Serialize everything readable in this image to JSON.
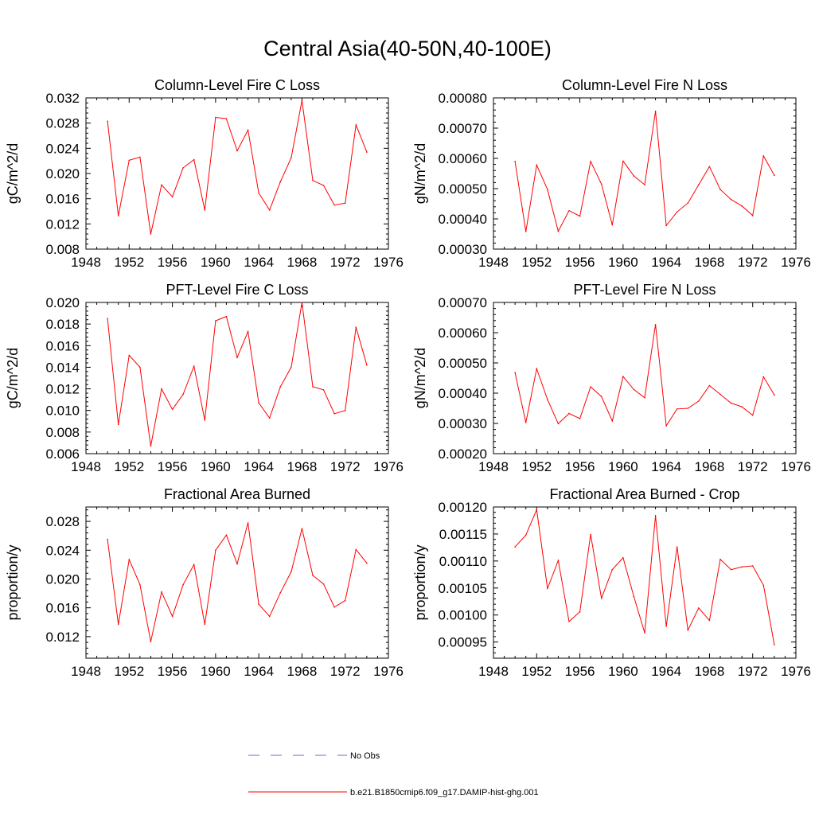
{
  "figure": {
    "title": "Central Asia(40-50N,40-100E)"
  },
  "legend": {
    "items": [
      {
        "label": "No Obs",
        "style": "dashed",
        "color": "#6a6ad0"
      },
      {
        "label": "b.e21.B1850cmip6.f09_g17.DAMIP-hist-ghg.001",
        "style": "solid",
        "color": "#ff0000"
      }
    ]
  },
  "chart_data": [
    {
      "type": "line",
      "title": "Column-Level Fire C Loss",
      "ylabel": "gC/m^2/d",
      "xlim": [
        1948,
        1976
      ],
      "xticks": [
        "1948",
        "1952",
        "1956",
        "1960",
        "1964",
        "1968",
        "1972",
        "1976"
      ],
      "ylim": [
        0.008,
        0.032
      ],
      "yticks": [
        "0.008",
        "0.012",
        "0.016",
        "0.020",
        "0.024",
        "0.028",
        "0.032"
      ],
      "series": [
        {
          "color": "#ff0000",
          "x": [
            1950,
            1951,
            1952,
            1953,
            1954,
            1955,
            1956,
            1957,
            1958,
            1959,
            1960,
            1961,
            1962,
            1963,
            1964,
            1965,
            1966,
            1967,
            1968,
            1969,
            1970,
            1971,
            1972,
            1973,
            1974
          ],
          "y": [
            0.0283,
            0.0133,
            0.0221,
            0.0226,
            0.0104,
            0.0182,
            0.0163,
            0.0209,
            0.0222,
            0.0142,
            0.0289,
            0.0287,
            0.0236,
            0.0269,
            0.0169,
            0.0142,
            0.0187,
            0.0225,
            0.0316,
            0.0189,
            0.0181,
            0.015,
            0.0153,
            0.0277,
            0.0234
          ]
        }
      ]
    },
    {
      "type": "line",
      "title": "Column-Level Fire N Loss",
      "ylabel": "gN/m^2/d",
      "xlim": [
        1948,
        1976
      ],
      "xticks": [
        "1948",
        "1952",
        "1956",
        "1960",
        "1964",
        "1968",
        "1972",
        "1976"
      ],
      "ylim": [
        0.0003,
        0.0008
      ],
      "yticks": [
        "0.00030",
        "0.00040",
        "0.00050",
        "0.00060",
        "0.00070",
        "0.00080"
      ],
      "series": [
        {
          "color": "#ff0000",
          "x": [
            1950,
            1951,
            1952,
            1953,
            1954,
            1955,
            1956,
            1957,
            1958,
            1959,
            1960,
            1961,
            1962,
            1963,
            1964,
            1965,
            1966,
            1967,
            1968,
            1969,
            1970,
            1971,
            1972,
            1973,
            1974
          ],
          "y": [
            0.00059,
            0.000358,
            0.000578,
            0.000497,
            0.000359,
            0.000427,
            0.000409,
            0.00059,
            0.000515,
            0.00038,
            0.000591,
            0.000542,
            0.000513,
            0.000756,
            0.000378,
            0.000423,
            0.000452,
            0.000513,
            0.000573,
            0.000497,
            0.000464,
            0.000443,
            0.000411,
            0.000608,
            0.000544
          ]
        }
      ]
    },
    {
      "type": "line",
      "title": "PFT-Level Fire C Loss",
      "ylabel": "gC/m^2/d",
      "xlim": [
        1948,
        1976
      ],
      "xticks": [
        "1948",
        "1952",
        "1956",
        "1960",
        "1964",
        "1968",
        "1972",
        "1976"
      ],
      "ylim": [
        0.006,
        0.02
      ],
      "yticks": [
        "0.006",
        "0.008",
        "0.010",
        "0.012",
        "0.014",
        "0.016",
        "0.018",
        "0.020"
      ],
      "series": [
        {
          "color": "#ff0000",
          "x": [
            1950,
            1951,
            1952,
            1953,
            1954,
            1955,
            1956,
            1957,
            1958,
            1959,
            1960,
            1961,
            1962,
            1963,
            1964,
            1965,
            1966,
            1967,
            1968,
            1969,
            1970,
            1971,
            1972,
            1973,
            1974
          ],
          "y": [
            0.0185,
            0.0087,
            0.0151,
            0.014,
            0.0067,
            0.012,
            0.0101,
            0.0115,
            0.0141,
            0.0091,
            0.0183,
            0.0187,
            0.0149,
            0.0173,
            0.0107,
            0.0093,
            0.0122,
            0.014,
            0.02,
            0.0122,
            0.0119,
            0.0097,
            0.01,
            0.0177,
            0.0142
          ]
        }
      ]
    },
    {
      "type": "line",
      "title": "PFT-Level Fire N Loss",
      "ylabel": "gN/m^2/d",
      "xlim": [
        1948,
        1976
      ],
      "xticks": [
        "1948",
        "1952",
        "1956",
        "1960",
        "1964",
        "1968",
        "1972",
        "1976"
      ],
      "ylim": [
        0.0002,
        0.0007
      ],
      "yticks": [
        "0.00020",
        "0.00030",
        "0.00040",
        "0.00050",
        "0.00060",
        "0.00070"
      ],
      "series": [
        {
          "color": "#ff0000",
          "x": [
            1950,
            1951,
            1952,
            1953,
            1954,
            1955,
            1956,
            1957,
            1958,
            1959,
            1960,
            1961,
            1962,
            1963,
            1964,
            1965,
            1966,
            1967,
            1968,
            1969,
            1970,
            1971,
            1972,
            1973,
            1974
          ],
          "y": [
            0.000468,
            0.000303,
            0.000481,
            0.000379,
            0.000299,
            0.000333,
            0.000316,
            0.000421,
            0.000389,
            0.000308,
            0.000455,
            0.000412,
            0.000385,
            0.000627,
            0.000292,
            0.000348,
            0.00035,
            0.000374,
            0.000425,
            0.000396,
            0.000367,
            0.000355,
            0.000327,
            0.000454,
            0.000394
          ]
        }
      ]
    },
    {
      "type": "line",
      "title": "Fractional Area Burned",
      "ylabel": "proportion/y",
      "xlim": [
        1948,
        1976
      ],
      "xticks": [
        "1948",
        "1952",
        "1956",
        "1960",
        "1964",
        "1968",
        "1972",
        "1976"
      ],
      "ylim": [
        0.009,
        0.03
      ],
      "yticks": [
        "0.012",
        "0.016",
        "0.020",
        "0.024",
        "0.028"
      ],
      "series": [
        {
          "color": "#ff0000",
          "x": [
            1950,
            1951,
            1952,
            1953,
            1954,
            1955,
            1956,
            1957,
            1958,
            1959,
            1960,
            1961,
            1962,
            1963,
            1964,
            1965,
            1966,
            1967,
            1968,
            1969,
            1970,
            1971,
            1972,
            1973,
            1974
          ],
          "y": [
            0.0255,
            0.0137,
            0.0227,
            0.0192,
            0.0113,
            0.0182,
            0.0148,
            0.0192,
            0.022,
            0.0137,
            0.024,
            0.0261,
            0.0221,
            0.0278,
            0.0165,
            0.0148,
            0.0181,
            0.021,
            0.027,
            0.0205,
            0.0193,
            0.0161,
            0.017,
            0.0241,
            0.0222
          ]
        }
      ]
    },
    {
      "type": "line",
      "title": "Fractional Area Burned - Crop",
      "ylabel": "proportion/y",
      "xlim": [
        1948,
        1976
      ],
      "xticks": [
        "1948",
        "1952",
        "1956",
        "1960",
        "1964",
        "1968",
        "1972",
        "1976"
      ],
      "ylim": [
        0.00092,
        0.0012
      ],
      "yticks": [
        "0.00095",
        "0.00100",
        "0.00105",
        "0.00110",
        "0.00115",
        "0.00120"
      ],
      "series": [
        {
          "color": "#ff0000",
          "x": [
            1950,
            1951,
            1952,
            1953,
            1954,
            1955,
            1956,
            1957,
            1958,
            1959,
            1960,
            1961,
            1962,
            1963,
            1964,
            1965,
            1966,
            1967,
            1968,
            1969,
            1970,
            1971,
            1972,
            1973,
            1974
          ],
          "y": [
            0.001126,
            0.001148,
            0.001195,
            0.001049,
            0.001101,
            0.000988,
            0.001006,
            0.001149,
            0.001031,
            0.001084,
            0.001106,
            0.001034,
            0.000967,
            0.001184,
            0.000979,
            0.001126,
            0.000972,
            0.001013,
            0.00099,
            0.001103,
            0.001084,
            0.001089,
            0.001091,
            0.001055,
            0.000945
          ]
        }
      ]
    }
  ]
}
